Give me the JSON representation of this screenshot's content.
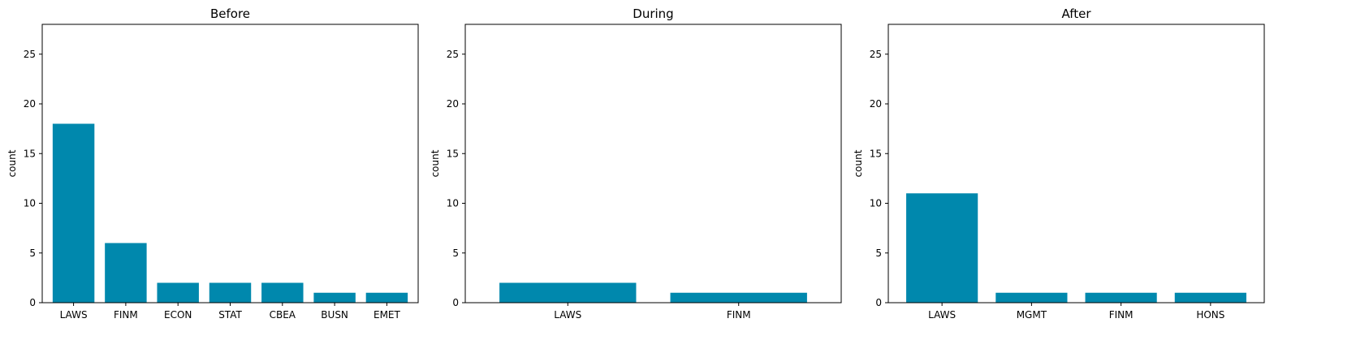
{
  "chart_data": [
    {
      "type": "bar",
      "title": "Before",
      "ylabel": "count",
      "xlabel": "",
      "categories": [
        "LAWS",
        "FINM",
        "ECON",
        "STAT",
        "CBEA",
        "BUSN",
        "EMET"
      ],
      "values": [
        18,
        6,
        2,
        2,
        2,
        1,
        1
      ],
      "ylim": [
        0,
        28
      ],
      "yticks": [
        0,
        5,
        10,
        15,
        20,
        25
      ],
      "color": "#0088ad",
      "grid": false
    },
    {
      "type": "bar",
      "title": "During",
      "ylabel": "count",
      "xlabel": "",
      "categories": [
        "LAWS",
        "FINM"
      ],
      "values": [
        2,
        1
      ],
      "ylim": [
        0,
        28
      ],
      "yticks": [
        0,
        5,
        10,
        15,
        20,
        25
      ],
      "color": "#0088ad",
      "grid": false
    },
    {
      "type": "bar",
      "title": "After",
      "ylabel": "count",
      "xlabel": "",
      "categories": [
        "LAWS",
        "MGMT",
        "FINM",
        "HONS"
      ],
      "values": [
        11,
        1,
        1,
        1
      ],
      "ylim": [
        0,
        28
      ],
      "yticks": [
        0,
        5,
        10,
        15,
        20,
        25
      ],
      "color": "#0088ad",
      "grid": false
    }
  ]
}
